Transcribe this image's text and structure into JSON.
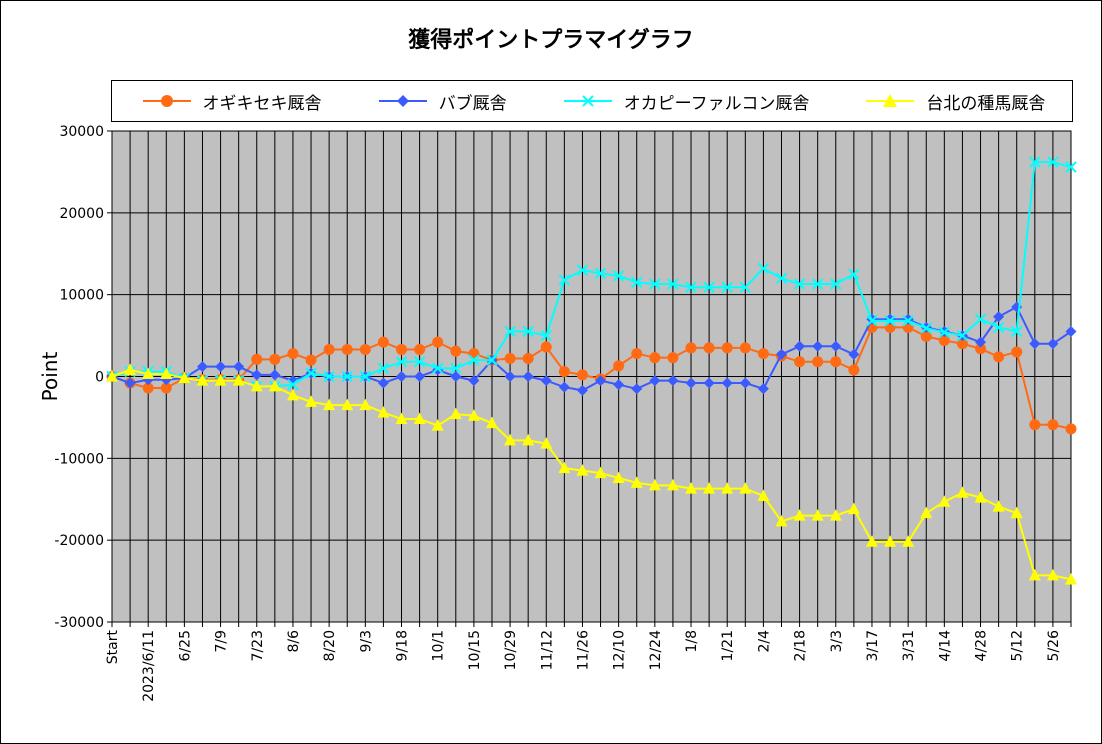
{
  "chart_data": {
    "type": "line",
    "title": "獲得ポイントプラマイグラフ",
    "xlabel": "",
    "ylabel": "Point",
    "ylim": [
      -30000,
      30000
    ],
    "yticks": [
      30000,
      20000,
      10000,
      0,
      -10000,
      -20000,
      -30000
    ],
    "grid": true,
    "legend_position": "top",
    "tick_labels": [
      {
        "index": 0,
        "label": "Start"
      },
      {
        "index": 2,
        "label": "2023/6/11"
      },
      {
        "index": 4,
        "label": "6/25"
      },
      {
        "index": 6,
        "label": "7/9"
      },
      {
        "index": 8,
        "label": "7/23"
      },
      {
        "index": 10,
        "label": "8/6"
      },
      {
        "index": 12,
        "label": "8/20"
      },
      {
        "index": 14,
        "label": "9/3"
      },
      {
        "index": 16,
        "label": "9/18"
      },
      {
        "index": 18,
        "label": "10/1"
      },
      {
        "index": 20,
        "label": "10/15"
      },
      {
        "index": 22,
        "label": "10/29"
      },
      {
        "index": 24,
        "label": "11/12"
      },
      {
        "index": 26,
        "label": "11/26"
      },
      {
        "index": 28,
        "label": "12/10"
      },
      {
        "index": 30,
        "label": "12/24"
      },
      {
        "index": 32,
        "label": "1/8"
      },
      {
        "index": 34,
        "label": "1/21"
      },
      {
        "index": 36,
        "label": "2/4"
      },
      {
        "index": 38,
        "label": "2/18"
      },
      {
        "index": 40,
        "label": "3/3"
      },
      {
        "index": 42,
        "label": "3/17"
      },
      {
        "index": 44,
        "label": "3/31"
      },
      {
        "index": 46,
        "label": "4/14"
      },
      {
        "index": 48,
        "label": "4/28"
      },
      {
        "index": 50,
        "label": "5/12"
      },
      {
        "index": 52,
        "label": "5/26"
      }
    ],
    "series": [
      {
        "name": "オギキセキ厩舎",
        "color": "#ff6a13",
        "marker": "circle",
        "values": [
          0,
          -800,
          -1400,
          -1400,
          -200,
          -400,
          -400,
          -400,
          2100,
          2100,
          2800,
          2000,
          3300,
          3300,
          3300,
          4200,
          3300,
          3300,
          4200,
          3100,
          2800,
          2000,
          2200,
          2200,
          3600,
          600,
          200,
          -300,
          1300,
          2800,
          2300,
          2300,
          3500,
          3500,
          3500,
          3500,
          2800,
          2500,
          1800,
          1800,
          1800,
          800,
          6000,
          6000,
          6000,
          4900,
          4400,
          4000,
          3400,
          2400,
          3000,
          -5900,
          -5900,
          -6400
        ]
      },
      {
        "name": "バブ厩舎",
        "color": "#3b5bff",
        "marker": "diamond",
        "values": [
          0,
          -800,
          -400,
          -400,
          -200,
          1200,
          1200,
          1200,
          200,
          200,
          -500,
          400,
          0,
          0,
          0,
          -800,
          0,
          0,
          800,
          0,
          -500,
          2000,
          0,
          0,
          -500,
          -1300,
          -1700,
          -500,
          -1000,
          -1500,
          -500,
          -500,
          -800,
          -800,
          -800,
          -800,
          -1500,
          2700,
          3700,
          3700,
          3700,
          2700,
          7000,
          7000,
          7000,
          6000,
          5500,
          5000,
          4200,
          7300,
          8500,
          4000,
          4000,
          5500
        ]
      },
      {
        "name": "オカピーファルコン厩舎",
        "color": "#00ffff",
        "marker": "x",
        "values": [
          0,
          600,
          600,
          600,
          -200,
          -500,
          -500,
          -500,
          -1200,
          -1200,
          -1000,
          400,
          0,
          0,
          0,
          1000,
          1800,
          1800,
          1000,
          1000,
          2000,
          2000,
          5500,
          5500,
          5000,
          11800,
          13000,
          12600,
          12300,
          11500,
          11300,
          11300,
          10900,
          10900,
          10900,
          10900,
          13200,
          12000,
          11300,
          11300,
          11300,
          12500,
          6800,
          6800,
          6800,
          5900,
          5400,
          5000,
          7000,
          6000,
          5500,
          26200,
          26200,
          25600
        ]
      },
      {
        "name": "台北の種馬厩舎",
        "color": "#ffff00",
        "marker": "triangle",
        "values": [
          0,
          800,
          300,
          300,
          -200,
          -500,
          -500,
          -500,
          -1200,
          -1200,
          -2300,
          -3100,
          -3500,
          -3500,
          -3500,
          -4400,
          -5200,
          -5200,
          -6000,
          -4600,
          -4800,
          -5700,
          -7800,
          -7800,
          -8200,
          -11200,
          -11500,
          -11800,
          -12400,
          -13000,
          -13300,
          -13300,
          -13700,
          -13700,
          -13700,
          -13700,
          -14600,
          -17700,
          -17000,
          -17000,
          -17000,
          -16200,
          -20200,
          -20200,
          -20200,
          -16700,
          -15300,
          -14200,
          -14800,
          -15900,
          -16700,
          -24300,
          -24300,
          -24800
        ]
      }
    ]
  }
}
